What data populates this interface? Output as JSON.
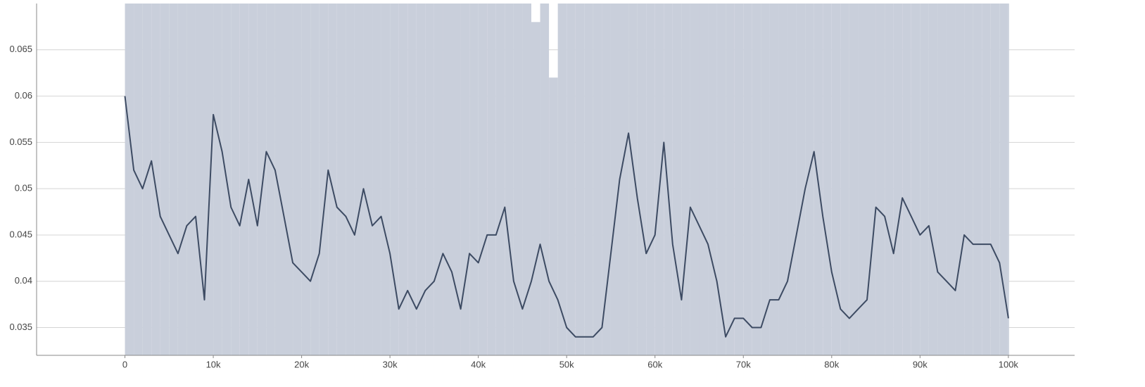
{
  "chart_data": {
    "type": "line",
    "x": [
      0,
      1000,
      2000,
      3000,
      4000,
      5000,
      6000,
      7000,
      8000,
      9000,
      10000,
      11000,
      12000,
      13000,
      14000,
      15000,
      16000,
      17000,
      18000,
      19000,
      20000,
      21000,
      22000,
      23000,
      24000,
      25000,
      26000,
      27000,
      28000,
      29000,
      30000,
      31000,
      32000,
      33000,
      34000,
      35000,
      36000,
      37000,
      38000,
      39000,
      40000,
      41000,
      42000,
      43000,
      44000,
      45000,
      46000,
      47000,
      48000,
      49000,
      50000,
      51000,
      52000,
      53000,
      54000,
      55000,
      56000,
      57000,
      58000,
      59000,
      60000,
      61000,
      62000,
      63000,
      64000,
      65000,
      66000,
      67000,
      68000,
      69000,
      70000,
      71000,
      72000,
      73000,
      74000,
      75000,
      76000,
      77000,
      78000,
      79000,
      80000,
      81000,
      82000,
      83000,
      84000,
      85000,
      86000,
      87000,
      88000,
      89000,
      90000,
      91000,
      92000,
      93000,
      94000,
      95000,
      96000,
      97000,
      98000,
      99000,
      100000
    ],
    "series": [
      {
        "color": "#c9cfdb",
        "values": [
          0.09,
          0.09,
          0.085,
          0.09,
          0.08,
          0.09,
          0.09,
          0.085,
          0.09,
          0.075,
          0.09,
          0.09,
          0.085,
          0.09,
          0.09,
          0.08,
          0.09,
          0.09,
          0.085,
          0.09,
          0.09,
          0.09,
          0.085,
          0.09,
          0.09,
          0.08,
          0.09,
          0.09,
          0.085,
          0.09,
          0.09,
          0.09,
          0.08,
          0.09,
          0.09,
          0.085,
          0.09,
          0.08,
          0.09,
          0.09,
          0.09,
          0.085,
          0.09,
          0.09,
          0.08,
          0.09,
          0.068,
          0.09,
          0.062,
          0.075,
          0.09,
          0.085,
          0.09,
          0.09,
          0.08,
          0.09,
          0.09,
          0.09,
          0.085,
          0.09,
          0.09,
          0.08,
          0.09,
          0.09,
          0.085,
          0.09,
          0.09,
          0.08,
          0.09,
          0.09,
          0.085,
          0.09,
          0.09,
          0.09,
          0.08,
          0.09,
          0.09,
          0.085,
          0.09,
          0.09,
          0.08,
          0.09,
          0.09,
          0.085,
          0.09,
          0.09,
          0.09,
          0.08,
          0.09,
          0.09,
          0.085,
          0.09,
          0.09,
          0.09,
          0.085,
          0.09,
          0.09,
          0.08,
          0.09,
          0.09,
          0.09
        ]
      },
      {
        "color": "#3d4b63",
        "values": [
          0.06,
          0.052,
          0.05,
          0.053,
          0.047,
          0.045,
          0.043,
          0.046,
          0.047,
          0.038,
          0.058,
          0.054,
          0.048,
          0.046,
          0.051,
          0.046,
          0.054,
          0.052,
          0.047,
          0.042,
          0.041,
          0.04,
          0.043,
          0.052,
          0.048,
          0.047,
          0.045,
          0.05,
          0.046,
          0.047,
          0.043,
          0.037,
          0.039,
          0.037,
          0.039,
          0.04,
          0.043,
          0.041,
          0.037,
          0.043,
          0.042,
          0.045,
          0.045,
          0.048,
          0.04,
          0.037,
          0.04,
          0.044,
          0.04,
          0.038,
          0.035,
          0.034,
          0.034,
          0.034,
          0.035,
          0.043,
          0.051,
          0.056,
          0.049,
          0.043,
          0.045,
          0.055,
          0.044,
          0.038,
          0.048,
          0.046,
          0.044,
          0.04,
          0.034,
          0.036,
          0.036,
          0.035,
          0.035,
          0.038,
          0.038,
          0.04,
          0.045,
          0.05,
          0.054,
          0.047,
          0.041,
          0.037,
          0.036,
          0.037,
          0.038,
          0.048,
          0.047,
          0.043,
          0.049,
          0.047,
          0.045,
          0.046,
          0.041,
          0.04,
          0.039,
          0.045,
          0.044,
          0.044,
          0.044,
          0.042,
          0.036
        ]
      }
    ],
    "xlim": [
      -10000,
      107500
    ],
    "ylim": [
      0.032,
      0.07
    ],
    "xticks": [
      0,
      {
        "value": 10000,
        "label": "10k"
      },
      {
        "value": 20000,
        "label": "20k"
      },
      {
        "value": 30000,
        "label": "30k"
      },
      {
        "value": 40000,
        "label": "40k"
      },
      {
        "value": 50000,
        "label": "50k"
      },
      {
        "value": 60000,
        "label": "60k"
      },
      {
        "value": 70000,
        "label": "70k"
      },
      {
        "value": 80000,
        "label": "80k"
      },
      {
        "value": 90000,
        "label": "90k"
      },
      {
        "value": 100000,
        "label": "100k"
      }
    ],
    "yticks": [
      0.035,
      0.04,
      0.045,
      0.05,
      0.055,
      0.06,
      0.065
    ],
    "grid": true
  }
}
